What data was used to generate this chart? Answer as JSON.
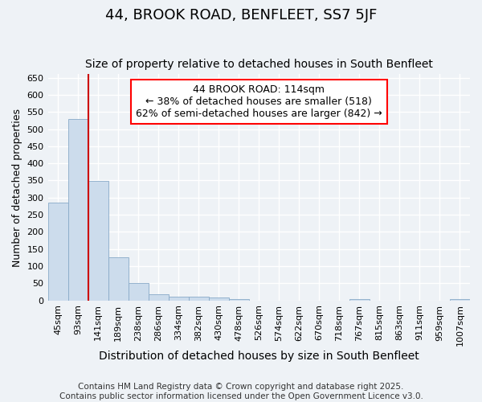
{
  "title": "44, BROOK ROAD, BENFLEET, SS7 5JF",
  "subtitle": "Size of property relative to detached houses in South Benfleet",
  "xlabel": "Distribution of detached houses by size in South Benfleet",
  "ylabel": "Number of detached properties",
  "bins": [
    "45sqm",
    "93sqm",
    "141sqm",
    "189sqm",
    "238sqm",
    "286sqm",
    "334sqm",
    "382sqm",
    "430sqm",
    "478sqm",
    "526sqm",
    "574sqm",
    "622sqm",
    "670sqm",
    "718sqm",
    "767sqm",
    "815sqm",
    "863sqm",
    "911sqm",
    "959sqm",
    "1007sqm"
  ],
  "values": [
    285,
    530,
    348,
    125,
    50,
    18,
    10,
    10,
    8,
    4,
    0,
    0,
    0,
    0,
    0,
    4,
    0,
    0,
    0,
    0,
    4
  ],
  "bar_color": "#ccdcec",
  "bar_edge_color": "#88aac8",
  "vline_color": "#cc0000",
  "vline_x": 1.5,
  "annotation_text": "44 BROOK ROAD: 114sqm\n← 38% of detached houses are smaller (518)\n62% of semi-detached houses are larger (842) →",
  "annotation_box_facecolor": "white",
  "annotation_box_edgecolor": "red",
  "ylim_max": 660,
  "yticks": [
    0,
    50,
    100,
    150,
    200,
    250,
    300,
    350,
    400,
    450,
    500,
    550,
    600,
    650
  ],
  "background_color": "#eef2f6",
  "grid_color": "white",
  "footer": "Contains HM Land Registry data © Crown copyright and database right 2025.\nContains public sector information licensed under the Open Government Licence v3.0.",
  "title_fontsize": 13,
  "subtitle_fontsize": 10,
  "xlabel_fontsize": 10,
  "ylabel_fontsize": 9,
  "tick_fontsize": 8,
  "annotation_fontsize": 9,
  "footer_fontsize": 7.5
}
